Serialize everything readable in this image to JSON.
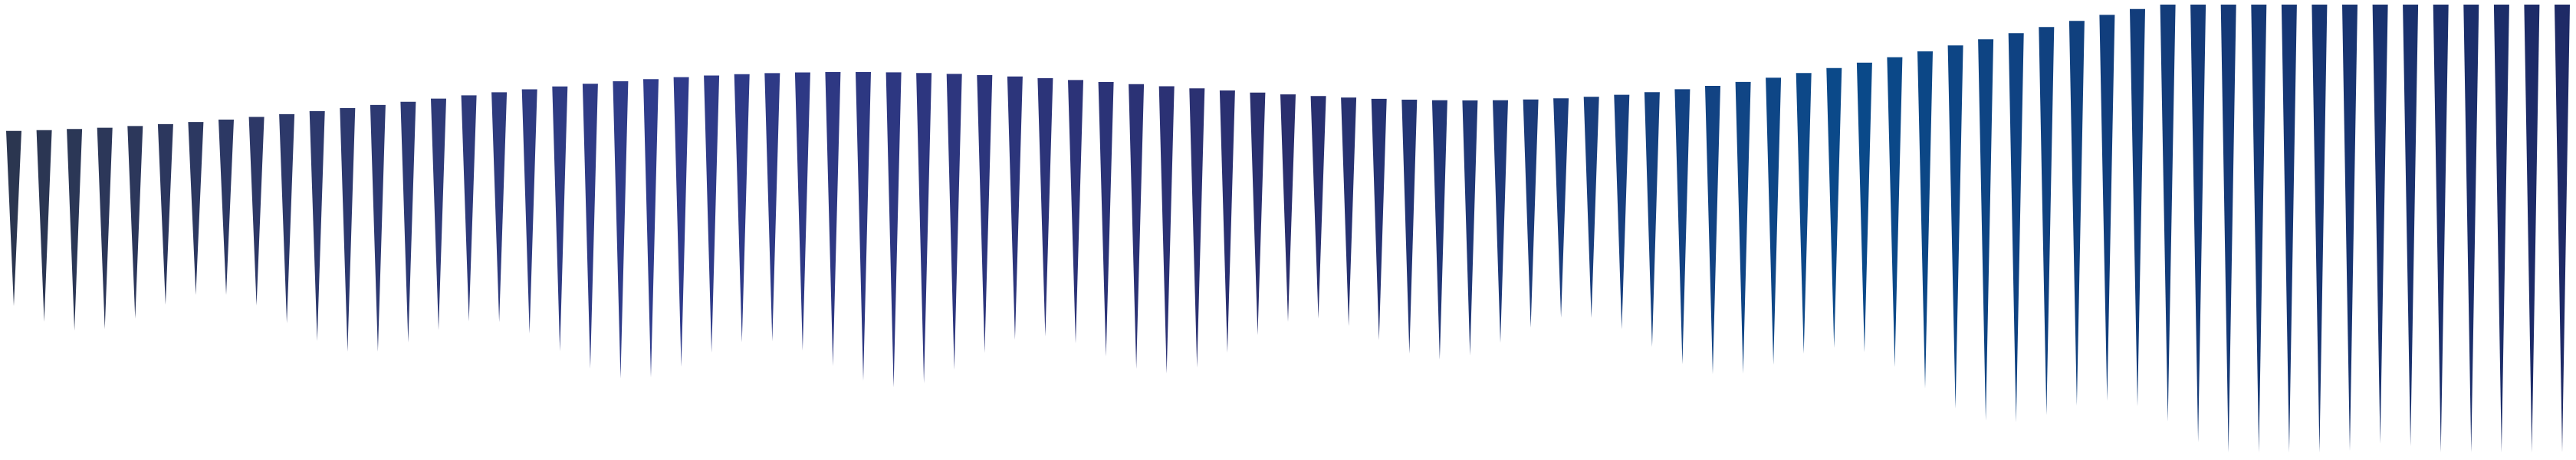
{
  "decoration": {
    "type": "waveform-spikes",
    "count": 85,
    "palette": {
      "slate": "#2b3650",
      "indigo": "#2a2f6e",
      "blue": "#2f3c8c",
      "teal": "#0a4a8a",
      "navy": "#1e2a66"
    }
  }
}
